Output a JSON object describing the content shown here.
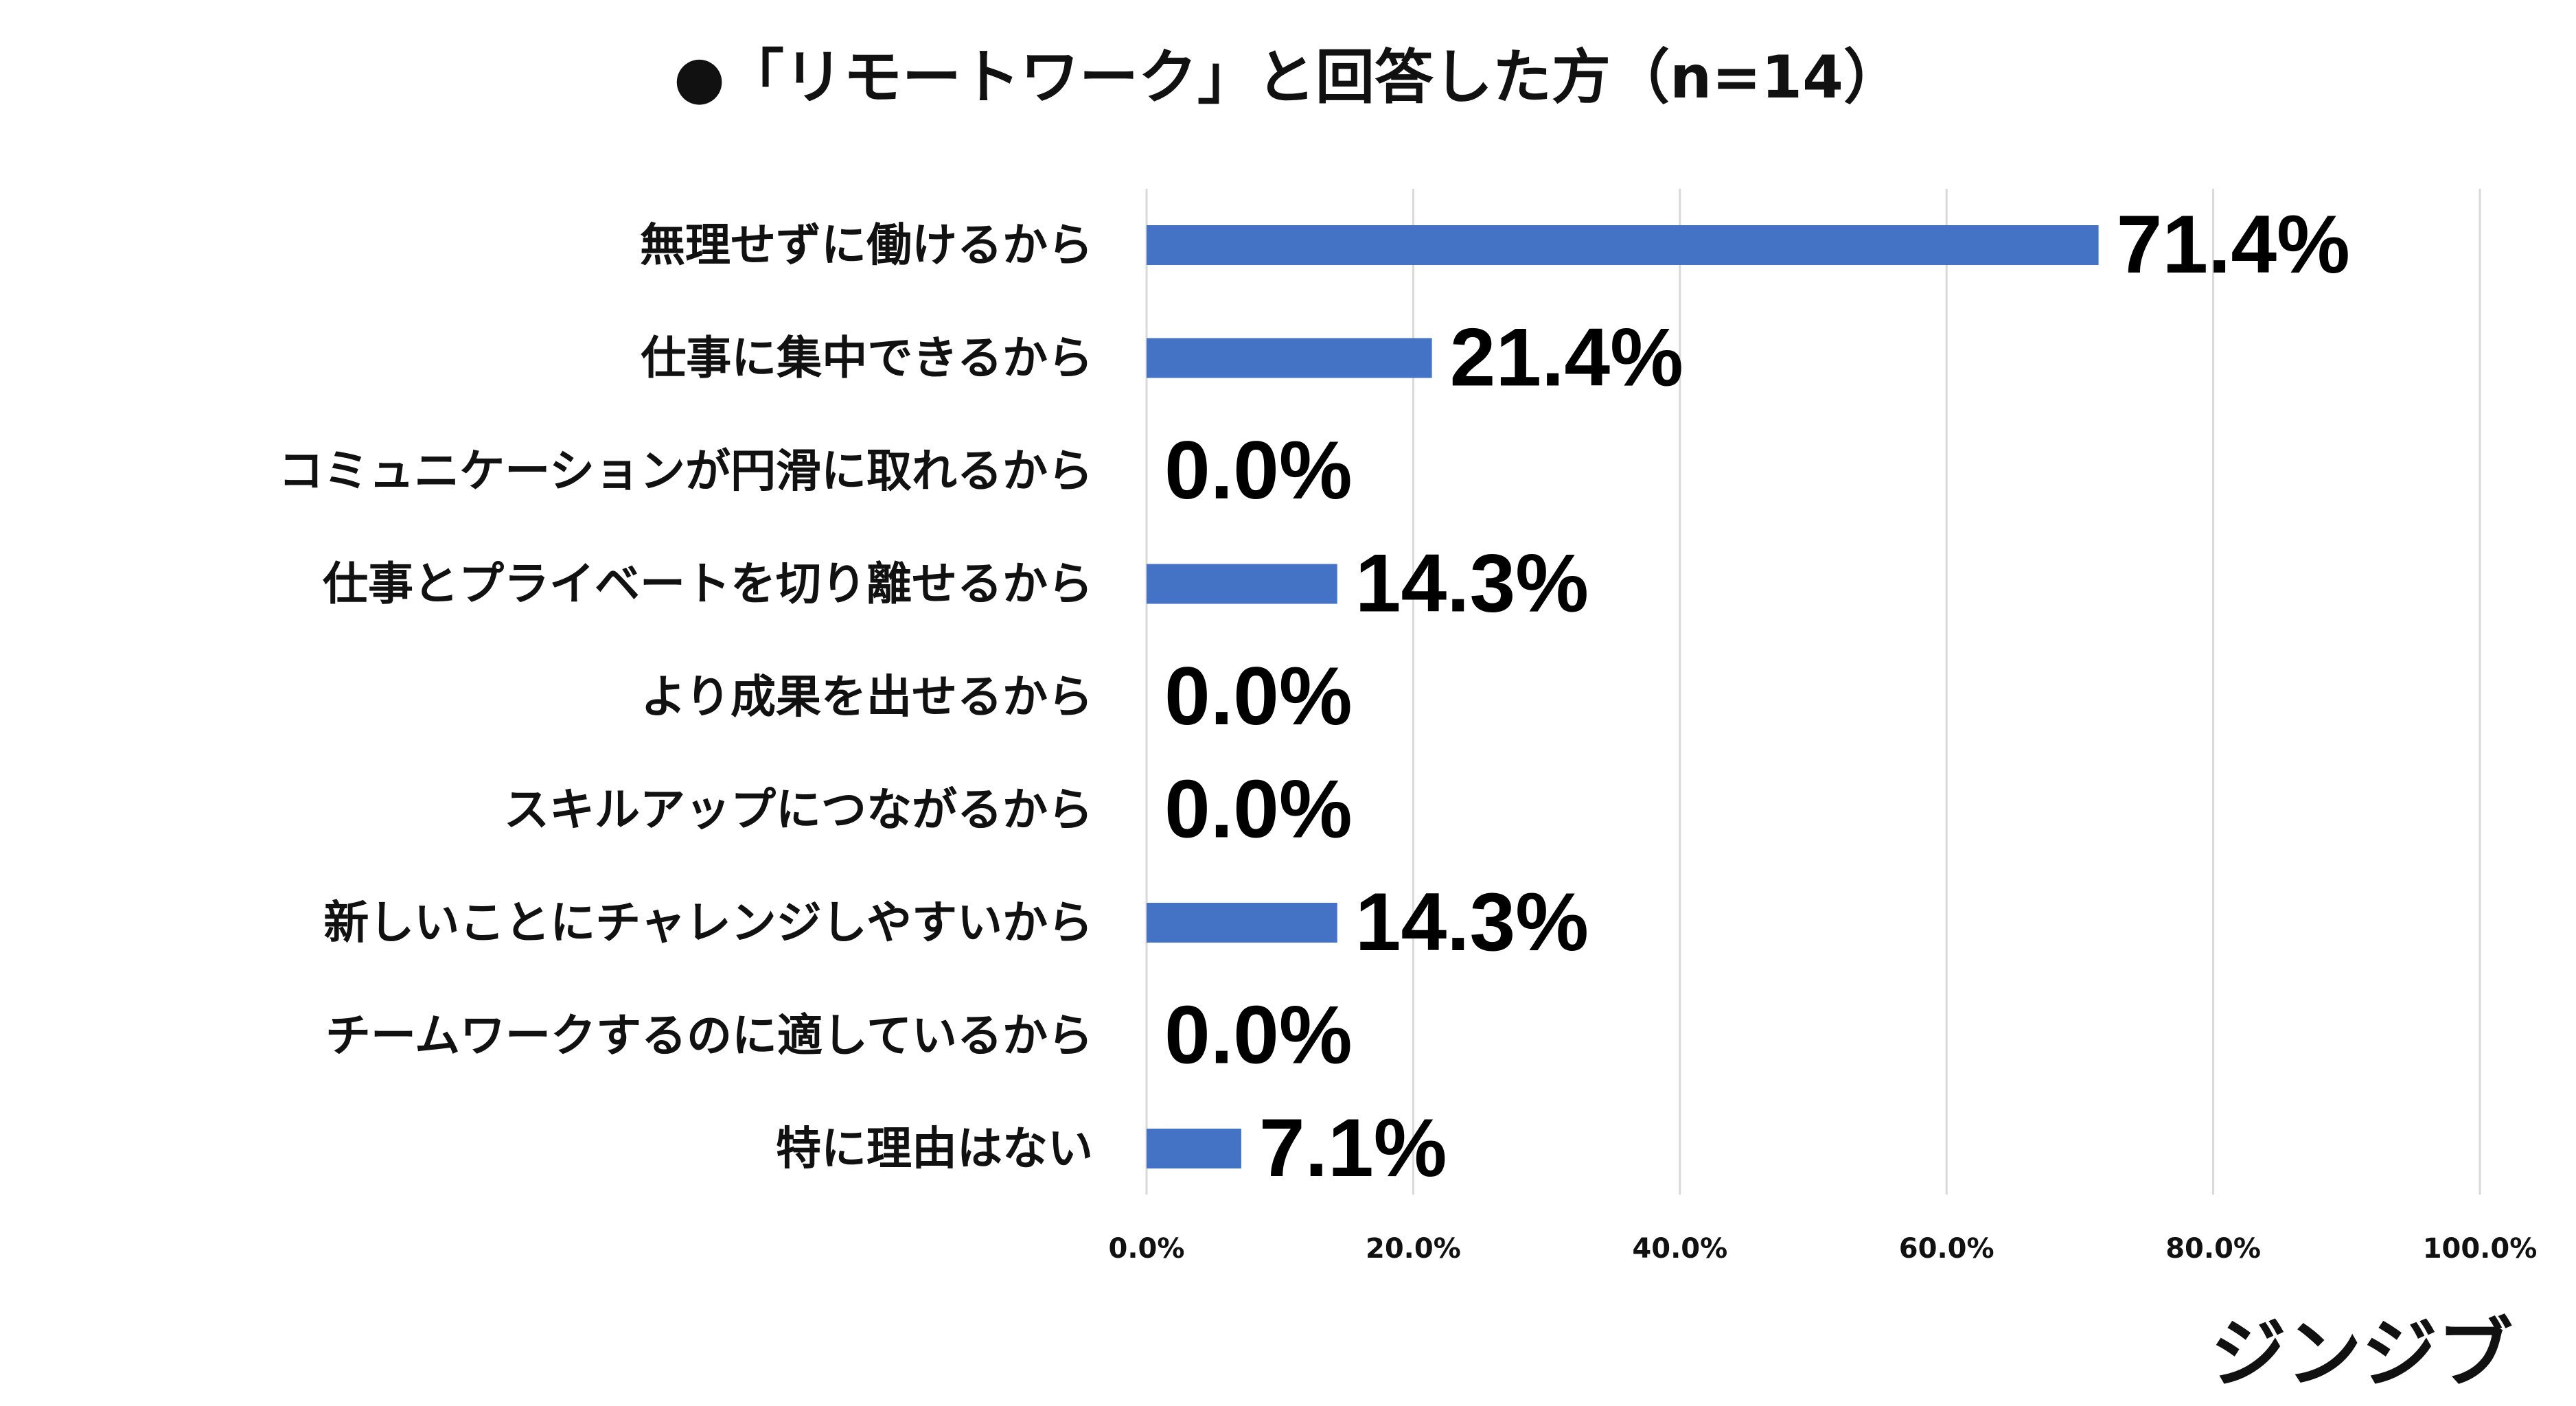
{
  "title": "●「リモートワーク」と回答した方（n=14）",
  "logo": "ジンジブ",
  "colors": {
    "bar": "#4472c4",
    "grid": "#d9d9d9",
    "text": "#111111"
  },
  "chart_data": {
    "type": "bar",
    "orientation": "horizontal",
    "title": "●「リモートワーク」と回答した方（n=14）",
    "categories": [
      "無理せずに働けるから",
      "仕事に集中できるから",
      "コミュニケーションが円滑に取れるから",
      "仕事とプライベートを切り離せるから",
      "より成果を出せるから",
      "スキルアップにつながるから",
      "新しいことにチャレンジしやすいから",
      "チームワークするのに適しているから",
      "特に理由はない"
    ],
    "values": [
      71.4,
      21.4,
      0.0,
      14.3,
      0.0,
      0.0,
      14.3,
      0.0,
      7.1
    ],
    "value_labels": [
      "71.4%",
      "21.4%",
      "0.0%",
      "14.3%",
      "0.0%",
      "0.0%",
      "14.3%",
      "0.0%",
      "7.1%"
    ],
    "xlim": [
      0,
      100
    ],
    "x_ticks": [
      0,
      20,
      40,
      60,
      80,
      100
    ],
    "x_tick_labels": [
      "0.0%",
      "20.0%",
      "40.0%",
      "60.0%",
      "80.0%",
      "100.0%"
    ],
    "grid": "vertical",
    "legend": "none",
    "xlabel": "",
    "ylabel": ""
  }
}
